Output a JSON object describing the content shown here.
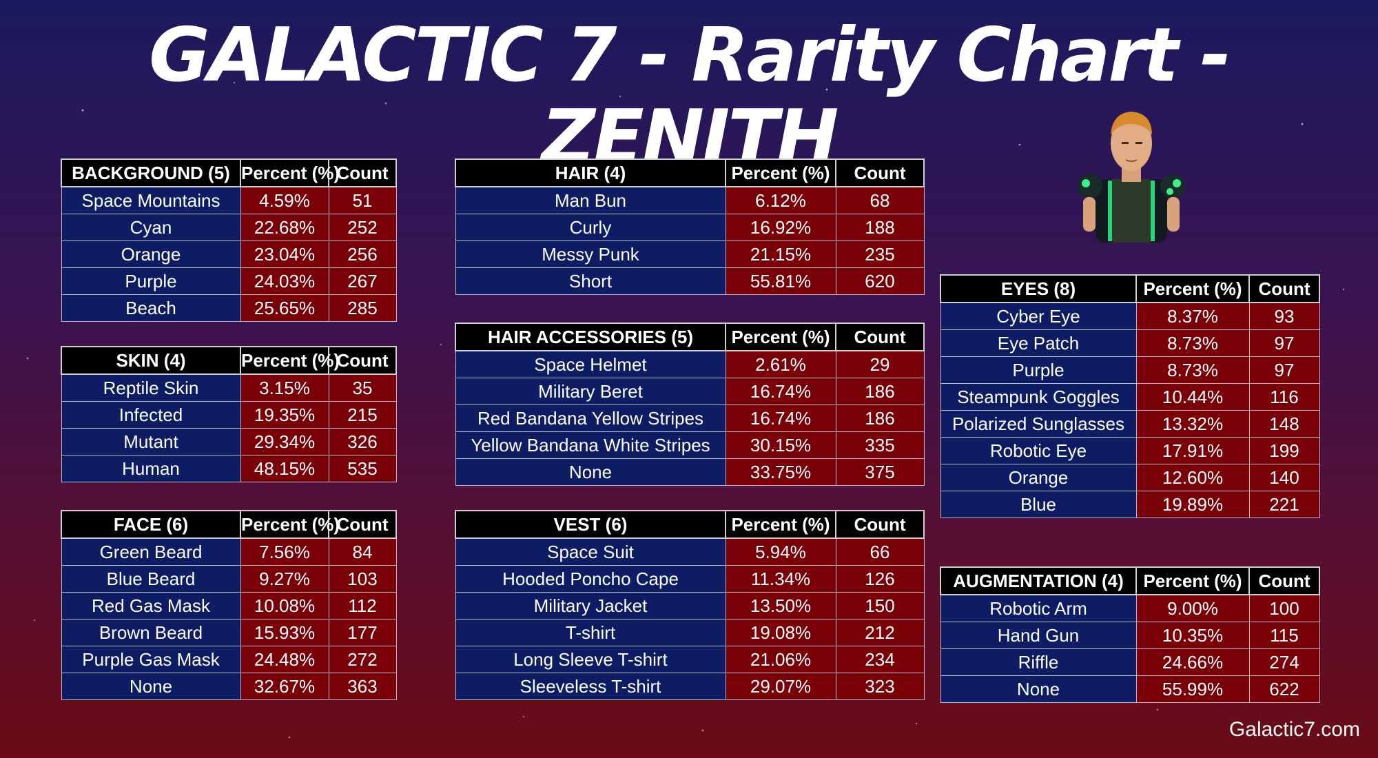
{
  "title": "GALACTIC 7 - Rarity Chart - ZENITH",
  "footer": "Galactic7.com",
  "colors": {
    "header": "#000000",
    "name_cell": "#0d1c63",
    "value_cell": "#7a0008"
  },
  "chart_data": [
    {
      "type": "table",
      "title": "BACKGROUND (5)",
      "columns": [
        "BACKGROUND (5)",
        "Percent (%)",
        "Count"
      ],
      "rows": [
        [
          "Space Mountains",
          "4.59%",
          "51"
        ],
        [
          "Cyan",
          "22.68%",
          "252"
        ],
        [
          "Orange",
          "23.04%",
          "256"
        ],
        [
          "Purple",
          "24.03%",
          "267"
        ],
        [
          "Beach",
          "25.65%",
          "285"
        ]
      ]
    },
    {
      "type": "table",
      "title": "SKIN (4)",
      "columns": [
        "SKIN (4)",
        "Percent (%)",
        "Count"
      ],
      "rows": [
        [
          "Reptile Skin",
          "3.15%",
          "35"
        ],
        [
          "Infected",
          "19.35%",
          "215"
        ],
        [
          "Mutant",
          "29.34%",
          "326"
        ],
        [
          "Human",
          "48.15%",
          "535"
        ]
      ]
    },
    {
      "type": "table",
      "title": "FACE (6)",
      "columns": [
        "FACE (6)",
        "Percent (%)",
        "Count"
      ],
      "rows": [
        [
          "Green Beard",
          "7.56%",
          "84"
        ],
        [
          "Blue Beard",
          "9.27%",
          "103"
        ],
        [
          "Red Gas Mask",
          "10.08%",
          "112"
        ],
        [
          "Brown Beard",
          "15.93%",
          "177"
        ],
        [
          "Purple Gas Mask",
          "24.48%",
          "272"
        ],
        [
          "None",
          "32.67%",
          "363"
        ]
      ]
    },
    {
      "type": "table",
      "title": "HAIR (4)",
      "columns": [
        "HAIR (4)",
        "Percent (%)",
        "Count"
      ],
      "rows": [
        [
          "Man Bun",
          "6.12%",
          "68"
        ],
        [
          "Curly",
          "16.92%",
          "188"
        ],
        [
          "Messy Punk",
          "21.15%",
          "235"
        ],
        [
          "Short",
          "55.81%",
          "620"
        ]
      ]
    },
    {
      "type": "table",
      "title": "HAIR ACCESSORIES (5)",
      "columns": [
        "HAIR ACCESSORIES (5)",
        "Percent (%)",
        "Count"
      ],
      "rows": [
        [
          "Space Helmet",
          "2.61%",
          "29"
        ],
        [
          "Military Beret",
          "16.74%",
          "186"
        ],
        [
          "Red Bandana Yellow Stripes",
          "16.74%",
          "186"
        ],
        [
          "Yellow Bandana White Stripes",
          "30.15%",
          "335"
        ],
        [
          "None",
          "33.75%",
          "375"
        ]
      ]
    },
    {
      "type": "table",
      "title": "VEST (6)",
      "columns": [
        "VEST (6)",
        "Percent (%)",
        "Count"
      ],
      "rows": [
        [
          "Space Suit",
          "5.94%",
          "66"
        ],
        [
          "Hooded Poncho Cape",
          "11.34%",
          "126"
        ],
        [
          "Military Jacket",
          "13.50%",
          "150"
        ],
        [
          "T-shirt",
          "19.08%",
          "212"
        ],
        [
          "Long Sleeve T-shirt",
          "21.06%",
          "234"
        ],
        [
          "Sleeveless T-shirt",
          "29.07%",
          "323"
        ]
      ]
    },
    {
      "type": "table",
      "title": "EYES (8)",
      "columns": [
        "EYES (8)",
        "Percent (%)",
        "Count"
      ],
      "rows": [
        [
          "Cyber Eye",
          "8.37%",
          "93"
        ],
        [
          "Eye Patch",
          "8.73%",
          "97"
        ],
        [
          "Purple",
          "8.73%",
          "97"
        ],
        [
          "Steampunk Goggles",
          "10.44%",
          "116"
        ],
        [
          "Polarized Sunglasses",
          "13.32%",
          "148"
        ],
        [
          "Robotic Eye",
          "17.91%",
          "199"
        ],
        [
          "Orange",
          "12.60%",
          "140"
        ],
        [
          "Blue",
          "19.89%",
          "221"
        ]
      ]
    },
    {
      "type": "table",
      "title": "AUGMENTATION (4)",
      "columns": [
        "AUGMENTATION (4)",
        "Percent (%)",
        "Count"
      ],
      "rows": [
        [
          "Robotic Arm",
          "9.00%",
          "100"
        ],
        [
          "Hand Gun",
          "10.35%",
          "115"
        ],
        [
          "Riffle",
          "24.66%",
          "274"
        ],
        [
          "None",
          "55.99%",
          "622"
        ]
      ]
    }
  ]
}
